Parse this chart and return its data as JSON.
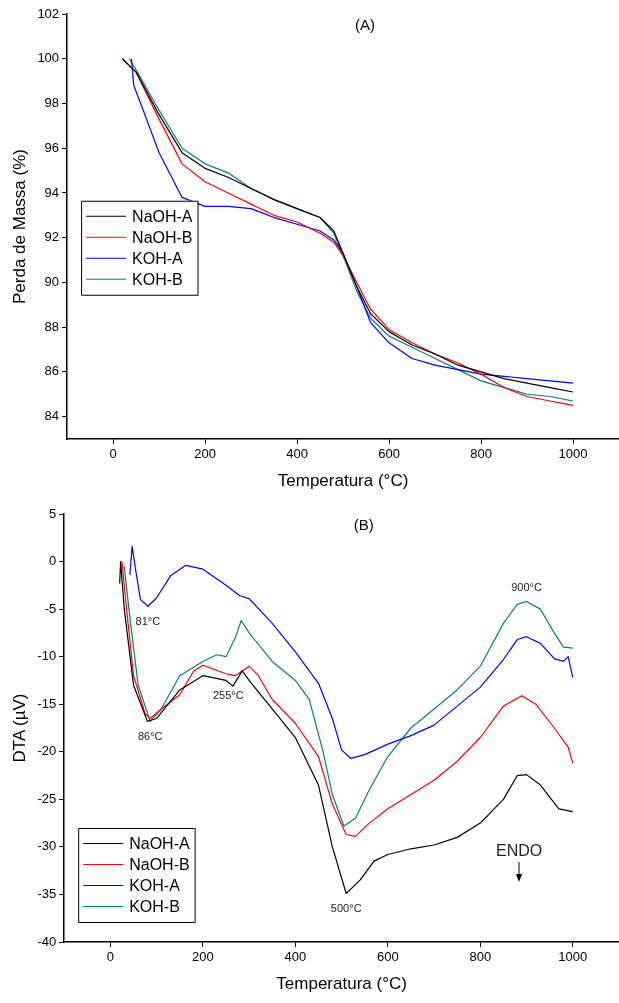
{
  "chart_data": [
    {
      "type": "line",
      "title": "(A)",
      "xlabel": "Temperatura (°C)",
      "ylabel": "Perda de Massa (%)",
      "xlim": [
        -100,
        1100
      ],
      "xticks": [
        0,
        200,
        400,
        600,
        800,
        1000
      ],
      "ylim": [
        83,
        102
      ],
      "yticks": [
        84,
        86,
        88,
        90,
        92,
        94,
        96,
        98,
        100,
        102
      ],
      "grid": false,
      "legend": "center left",
      "marker": "none",
      "line_style": "solid",
      "series": [
        {
          "name": "NaOH-A",
          "color": "#000000",
          "x": [
            20,
            50,
            100,
            150,
            200,
            250,
            300,
            350,
            400,
            450,
            480,
            500,
            530,
            560,
            600,
            650,
            700,
            750,
            800,
            850,
            900,
            950,
            1000
          ],
          "values": [
            100,
            99.4,
            97.5,
            95.8,
            95.1,
            94.7,
            94.2,
            93.7,
            93.3,
            92.9,
            92.3,
            91.3,
            89.8,
            88.6,
            87.8,
            87.2,
            86.8,
            86.3,
            86.0,
            85.7,
            85.5,
            85.3,
            85.1
          ]
        },
        {
          "name": "NaOH-B",
          "color": "#ff0000",
          "x": [
            20,
            50,
            100,
            150,
            200,
            250,
            300,
            350,
            400,
            450,
            480,
            500,
            530,
            560,
            600,
            650,
            700,
            750,
            800,
            850,
            900,
            950,
            1000
          ],
          "values": [
            100,
            99.4,
            97.3,
            95.3,
            94.5,
            94.0,
            93.5,
            93.0,
            92.7,
            92.2,
            91.8,
            91.2,
            90.0,
            88.8,
            87.9,
            87.3,
            86.8,
            86.4,
            85.9,
            85.3,
            84.9,
            84.7,
            84.5
          ]
        },
        {
          "name": "KOH-A",
          "color": "#0000ff",
          "x": [
            40,
            45,
            60,
            100,
            150,
            200,
            250,
            300,
            350,
            400,
            450,
            480,
            500,
            530,
            560,
            600,
            650,
            700,
            750,
            800,
            850,
            900,
            950,
            1000
          ],
          "values": [
            100,
            98.8,
            98,
            95.8,
            93.8,
            93.4,
            93.4,
            93.3,
            92.9,
            92.6,
            92.3,
            91.9,
            91.3,
            89.8,
            88.2,
            87.3,
            86.6,
            86.3,
            86.1,
            85.9,
            85.8,
            85.7,
            85.6,
            85.5
          ]
        },
        {
          "name": "KOH-B",
          "color": "#008080",
          "x": [
            35,
            50,
            100,
            150,
            200,
            250,
            300,
            350,
            400,
            450,
            480,
            500,
            530,
            560,
            600,
            650,
            700,
            750,
            800,
            850,
            900,
            950,
            1000
          ],
          "values": [
            100,
            99.5,
            97.7,
            96.0,
            95.3,
            94.9,
            94.2,
            93.7,
            93.3,
            92.9,
            92.2,
            91.2,
            89.6,
            88.4,
            87.6,
            87.1,
            86.6,
            86.1,
            85.6,
            85.3,
            85.0,
            84.9,
            84.7
          ]
        }
      ]
    },
    {
      "type": "line",
      "title": "(B)",
      "xlabel": "Temperatura (°C)",
      "ylabel": "DTA (µV)",
      "xlim": [
        -100,
        1100
      ],
      "xticks": [
        0,
        200,
        400,
        600,
        800,
        1000
      ],
      "ylim": [
        -40,
        5
      ],
      "yticks": [
        -40,
        -35,
        -30,
        -25,
        -20,
        -15,
        -10,
        -5,
        0,
        5
      ],
      "grid": false,
      "legend": "bottom left",
      "marker": "none",
      "line_style": "solid",
      "annotations": [
        {
          "text": "81°C",
          "x": 81,
          "y": -4.7
        },
        {
          "text": "86°C",
          "x": 86,
          "y": -16.8
        },
        {
          "text": "255°C",
          "x": 255,
          "y": -12.5
        },
        {
          "text": "500°C",
          "x": 510,
          "y": -34.9
        },
        {
          "text": "900°C",
          "x": 900,
          "y": -4.2
        },
        "ENDO"
      ],
      "series": [
        {
          "name": "NaOH-A",
          "color": "#000000",
          "x": [
            20,
            22,
            30,
            50,
            80,
            100,
            150,
            200,
            250,
            265,
            285,
            300,
            350,
            400,
            450,
            480,
            510,
            540,
            570,
            600,
            650,
            700,
            750,
            800,
            850,
            880,
            900,
            930,
            970,
            1000
          ],
          "values": [
            -2.3,
            0,
            -5,
            -13,
            -16.8,
            -16.5,
            -13.5,
            -12,
            -12.5,
            -13.1,
            -11.5,
            -12.5,
            -15.5,
            -18.5,
            -23.5,
            -30,
            -34.9,
            -33.5,
            -31.5,
            -30.8,
            -30.2,
            -29.8,
            -29,
            -27.5,
            -25,
            -22.5,
            -22.4,
            -23.5,
            -26,
            -26.3
          ]
        },
        {
          "name": "NaOH-B",
          "color": "#ff0000",
          "x": [
            25,
            35,
            50,
            75,
            86,
            110,
            150,
            180,
            200,
            250,
            270,
            300,
            320,
            350,
            400,
            450,
            480,
            510,
            530,
            560,
            600,
            650,
            700,
            750,
            800,
            850,
            890,
            920,
            960,
            990,
            1000
          ],
          "values": [
            0,
            -5,
            -12,
            -16,
            -16.5,
            -15.5,
            -14,
            -11.5,
            -10.9,
            -11.8,
            -12,
            -11,
            -12,
            -14.5,
            -17,
            -20.5,
            -25.5,
            -28.7,
            -28.9,
            -27.5,
            -26,
            -24.5,
            -23,
            -21,
            -18.5,
            -15.2,
            -14.1,
            -15,
            -17.5,
            -19.5,
            -21.2
          ]
        },
        {
          "name": "KOH-A",
          "color": "#0000ff",
          "x": [
            42,
            47,
            55,
            65,
            81,
            100,
            130,
            163,
            200,
            250,
            280,
            300,
            350,
            400,
            450,
            480,
            500,
            520,
            550,
            600,
            650,
            700,
            750,
            800,
            850,
            880,
            900,
            930,
            960,
            980,
            990,
            1000
          ],
          "values": [
            -1.4,
            1.6,
            -1,
            -4,
            -4.7,
            -3.8,
            -1.5,
            -0.4,
            -0.8,
            -2.5,
            -3.6,
            -3.9,
            -6.5,
            -9.5,
            -12.8,
            -16.5,
            -19.8,
            -20.7,
            -20.3,
            -19.2,
            -18.3,
            -17.2,
            -15.2,
            -13.2,
            -10.3,
            -8.2,
            -7.9,
            -8.6,
            -10.2,
            -10.5,
            -10,
            -12.2
          ]
        },
        {
          "name": "KOH-B",
          "color": "#008080",
          "x": [
            30,
            40,
            60,
            86,
            110,
            150,
            200,
            230,
            250,
            270,
            283,
            300,
            350,
            400,
            430,
            460,
            480,
            505,
            530,
            560,
            600,
            650,
            700,
            750,
            800,
            850,
            880,
            900,
            930,
            960,
            980,
            1000
          ],
          "values": [
            -0.5,
            -5,
            -13,
            -16.8,
            -15.5,
            -12,
            -10.5,
            -9.8,
            -10,
            -8,
            -6.2,
            -7.5,
            -10.5,
            -12.5,
            -14.5,
            -20,
            -24.5,
            -27.8,
            -27,
            -24,
            -20.5,
            -17.5,
            -15.5,
            -13.5,
            -11,
            -6.5,
            -4.5,
            -4.2,
            -5,
            -7.5,
            -9,
            -9.1
          ]
        }
      ]
    }
  ]
}
